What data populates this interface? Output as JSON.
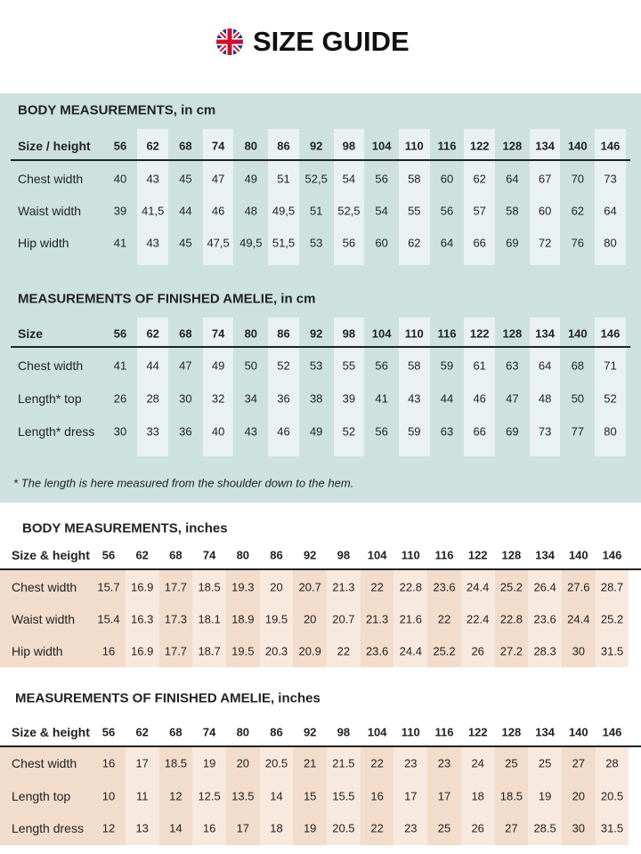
{
  "header": {
    "title": "SIZE GUIDE"
  },
  "tables": [
    {
      "title": "BODY MEASUREMENTS, in cm",
      "columns": [
        "Size / height",
        "56",
        "62",
        "68",
        "74",
        "80",
        "86",
        "92",
        "98",
        "104",
        "110",
        "116",
        "122",
        "128",
        "134",
        "140",
        "146"
      ],
      "rows": [
        [
          "Chest width",
          "40",
          "43",
          "45",
          "47",
          "49",
          "51",
          "52,5",
          "54",
          "56",
          "58",
          "60",
          "62",
          "64",
          "67",
          "70",
          "73"
        ],
        [
          "Waist width",
          "39",
          "41,5",
          "44",
          "46",
          "48",
          "49,5",
          "51",
          "52,5",
          "54",
          "55",
          "56",
          "57",
          "58",
          "60",
          "62",
          "64"
        ],
        [
          "Hip width",
          "41",
          "43",
          "45",
          "47,5",
          "49,5",
          "51,5",
          "53",
          "56",
          "60",
          "62",
          "64",
          "66",
          "69",
          "72",
          "76",
          "80"
        ]
      ]
    },
    {
      "title": "MEASUREMENTS OF FINISHED AMELIE, in cm",
      "columns": [
        "Size",
        "56",
        "62",
        "68",
        "74",
        "80",
        "86",
        "92",
        "98",
        "104",
        "110",
        "116",
        "122",
        "128",
        "134",
        "140",
        "146"
      ],
      "rows": [
        [
          "Chest width",
          "41",
          "44",
          "47",
          "49",
          "50",
          "52",
          "53",
          "55",
          "56",
          "58",
          "59",
          "61",
          "63",
          "64",
          "68",
          "71"
        ],
        [
          "Length* top",
          "26",
          "28",
          "30",
          "32",
          "34",
          "36",
          "38",
          "39",
          "41",
          "43",
          "44",
          "46",
          "47",
          "48",
          "50",
          "52"
        ],
        [
          "Length* dress",
          "30",
          "33",
          "36",
          "40",
          "43",
          "46",
          "49",
          "52",
          "56",
          "59",
          "63",
          "66",
          "69",
          "73",
          "77",
          "80"
        ]
      ]
    },
    {
      "title": "BODY MEASUREMENTS, inches",
      "columns": [
        "Size & height",
        "56",
        "62",
        "68",
        "74",
        "80",
        "86",
        "92",
        "98",
        "104",
        "110",
        "116",
        "122",
        "128",
        "134",
        "140",
        "146"
      ],
      "rows": [
        [
          "Chest width",
          "15.7",
          "16.9",
          "17.7",
          "18.5",
          "19.3",
          "20",
          "20.7",
          "21.3",
          "22",
          "22.8",
          "23.6",
          "24.4",
          "25.2",
          "26.4",
          "27.6",
          "28.7"
        ],
        [
          "Waist width",
          "15.4",
          "16.3",
          "17.3",
          "18.1",
          "18.9",
          "19.5",
          "20",
          "20.7",
          "21.3",
          "21.6",
          "22",
          "22.4",
          "22.8",
          "23.6",
          "24.4",
          "25.2"
        ],
        [
          "Hip width",
          "16",
          "16.9",
          "17.7",
          "18.7",
          "19.5",
          "20.3",
          "20.9",
          "22",
          "23.6",
          "24.4",
          "25.2",
          "26",
          "27.2",
          "28.3",
          "30",
          "31.5"
        ]
      ]
    },
    {
      "title": "MEASUREMENTS OF FINISHED AMELIE, inches",
      "columns": [
        "Size & height",
        "56",
        "62",
        "68",
        "74",
        "80",
        "86",
        "92",
        "98",
        "104",
        "110",
        "116",
        "122",
        "128",
        "134",
        "140",
        "146"
      ],
      "rows": [
        [
          "Chest width",
          "16",
          "17",
          "18.5",
          "19",
          "20",
          "20.5",
          "21",
          "21.5",
          "22",
          "23",
          "23",
          "24",
          "25",
          "25",
          "27",
          "28"
        ],
        [
          "Length top",
          "10",
          "11",
          "12",
          "12.5",
          "13.5",
          "14",
          "15",
          "15.5",
          "16",
          "17",
          "17",
          "18",
          "18.5",
          "19",
          "20",
          "20.5"
        ],
        [
          "Length dress",
          "12",
          "13",
          "14",
          "16",
          "17",
          "18",
          "19",
          "20.5",
          "22",
          "23",
          "25",
          "26",
          "27",
          "28.5",
          "30",
          "31.5"
        ]
      ]
    }
  ],
  "footnote": "* The length is here measured from the shoulder down to the hem."
}
